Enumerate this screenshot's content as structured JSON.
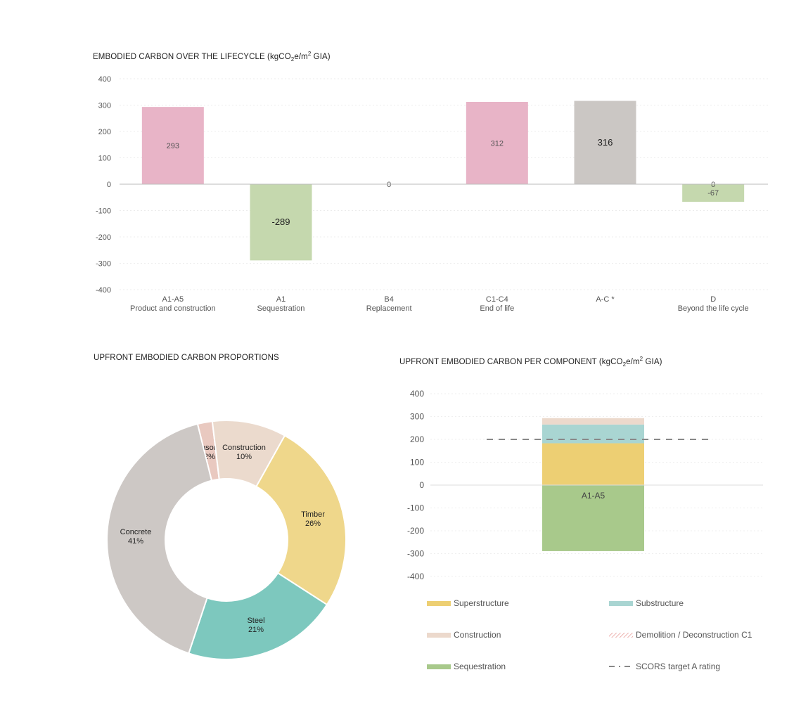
{
  "chart_data": [
    {
      "type": "bar",
      "title": "EMBODIED CARBON OVER THE LIFECYCLE (kgCO2e/m2 GIA)",
      "title_parts": {
        "main": "EMBODIED CARBON OVER THE LIFECYCLE (kgCO",
        "sub": "2",
        "mid": "e/m",
        "sup": "2",
        "end": " GIA)"
      },
      "ylim": [
        -400,
        400
      ],
      "yticks": [
        400,
        300,
        200,
        100,
        0,
        -100,
        -200,
        -300,
        -400
      ],
      "grid": true,
      "categories": [
        {
          "code": "A1-A5",
          "name": "Product and construction",
          "value": 293,
          "label": "293",
          "color": "#e8b4c7"
        },
        {
          "code": "A1",
          "name": "Sequestration",
          "value": -289,
          "label": "-289",
          "color": "#c5d8ae"
        },
        {
          "code": "B4",
          "name": "Replacement",
          "value": 0,
          "label": "0",
          "color": "#c5d8ae"
        },
        {
          "code": "C1-C4",
          "name": "End of life",
          "value": 312,
          "label": "312",
          "color": "#e8b4c7"
        },
        {
          "code": "A-C *",
          "name": "",
          "value": 316,
          "label": "316",
          "color": "#cbc7c4"
        },
        {
          "code": "D",
          "name": "Beyond the life cycle",
          "value": -67,
          "label": "-67",
          "extra_label": "0",
          "color": "#c5d8ae"
        }
      ]
    },
    {
      "type": "pie",
      "title": "UPFRONT EMBODIED CARBON PROPORTIONS",
      "donut": true,
      "slices": [
        {
          "name": "Masonry",
          "value": 2,
          "label": "2%",
          "color": "#e9c9c0"
        },
        {
          "name": "Construction",
          "value": 10,
          "label": "10%",
          "color": "#ebdacd"
        },
        {
          "name": "Timber",
          "value": 26,
          "label": "26%",
          "color": "#efd78b"
        },
        {
          "name": "Steel",
          "value": 21,
          "label": "21%",
          "color": "#7dc8be"
        },
        {
          "name": "Concrete",
          "value": 41,
          "label": "41%",
          "color": "#cdc8c5"
        }
      ]
    },
    {
      "type": "bar",
      "stacked": true,
      "title": "UPFRONT EMBODIED CARBON PER COMPONENT (kgCO2e/m2 GIA)",
      "title_parts": {
        "main": "UPFRONT EMBODIED CARBON PER COMPONENT (kgCO",
        "sub": "2",
        "mid": "e/m",
        "sup": "2",
        "end": " GIA)"
      },
      "ylim": [
        -400,
        400
      ],
      "yticks": [
        400,
        300,
        200,
        100,
        0,
        -100,
        -200,
        -300,
        -400
      ],
      "categories": [
        "A1-A5"
      ],
      "series": [
        {
          "name": "Superstructure",
          "values": [
            183
          ],
          "color": "#edcf73"
        },
        {
          "name": "Substructure",
          "values": [
            82
          ],
          "color": "#a9d5d2"
        },
        {
          "name": "Construction",
          "values": [
            28
          ],
          "color": "#ecd9cc"
        },
        {
          "name": "Demolition / Deconstruction C1",
          "values": [
            0
          ],
          "color": "#e79a96",
          "pattern": "hatch"
        },
        {
          "name": "Sequestration",
          "values": [
            -289
          ],
          "color": "#a8c98b"
        }
      ],
      "target": {
        "name": "SCORS target A rating",
        "value": 200,
        "color": "#888888"
      },
      "legend_placement": "bottom"
    }
  ]
}
